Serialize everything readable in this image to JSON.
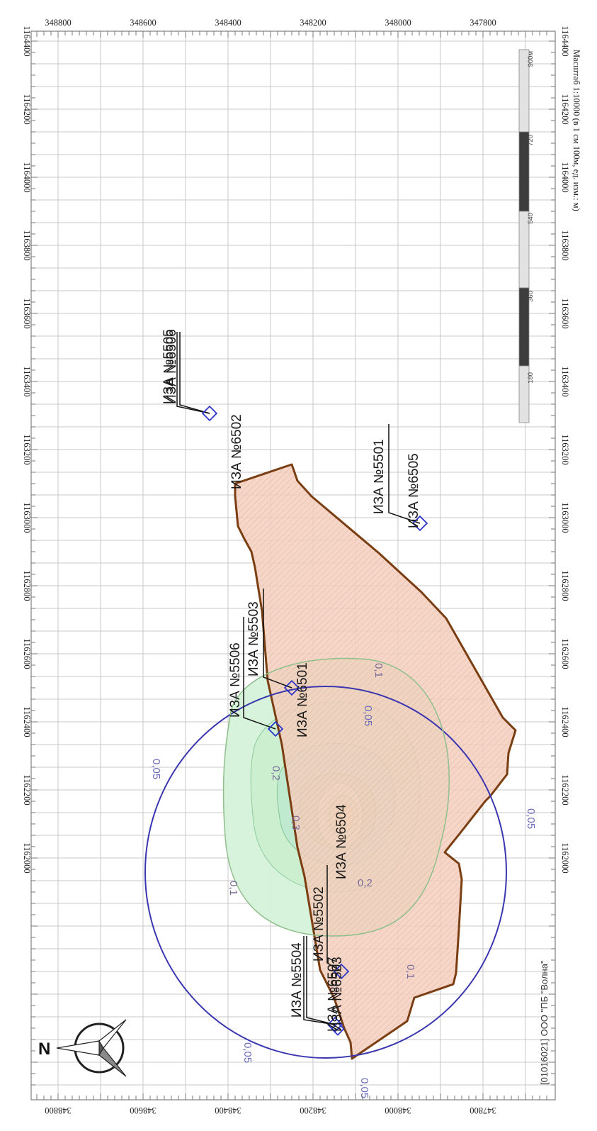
{
  "map": {
    "footer": "[01016021] ООО \"ПБ \"Волна\"",
    "scale_caption": "Масштаб 1:10000 (в 1 см 100м, ед. изм.: м)",
    "north_label": "N",
    "top_axis": [
      "348800",
      "348600",
      "348400",
      "348200",
      "348000",
      "347800"
    ],
    "bottom_axis": [
      "348800",
      "348600",
      "348400",
      "348200",
      "348000",
      "347800"
    ],
    "left_axis": [
      "1164400",
      "1164200",
      "1164000",
      "1163800",
      "1163600",
      "1163400",
      "1163200",
      "1163000",
      "1162800",
      "1162600",
      "1162400",
      "1162200",
      "1162000"
    ],
    "right_axis": [
      "1164400",
      "1164200",
      "1164000",
      "1163800",
      "1163600",
      "1163400",
      "1163200",
      "1163000",
      "1162800",
      "1162600",
      "1162400",
      "1162200",
      "1162000"
    ],
    "scale_bar": [
      "180",
      "360",
      "540",
      "720",
      "900м"
    ],
    "sources": [
      "ИЗА №6502",
      "ИЗА №5505",
      "ИЗА №6506",
      "ИЗА №5501",
      "ИЗА №6505",
      "ИЗА №5506",
      "ИЗА №5503",
      "ИЗА №6501",
      "ИЗА №6504",
      "ИЗА №5502",
      "ИЗА №6503",
      "ИЗА №5504",
      "ИЗА №6507"
    ],
    "isolines": [
      "0,05",
      "0,05",
      "0,05",
      "0,05",
      "0,05",
      "0,1",
      "0,1",
      "0,1",
      "0,2",
      "0,2",
      "0,3"
    ],
    "colors": {
      "site_border": "#7a3e12",
      "site_fill": "#f1c8b6",
      "isoline_outer": "#3a36b0",
      "plume_fill": "#cdeed2",
      "plume_line": "#8ac99a",
      "grid": "#c9c9c9",
      "marker": "#2d36c8"
    }
  }
}
